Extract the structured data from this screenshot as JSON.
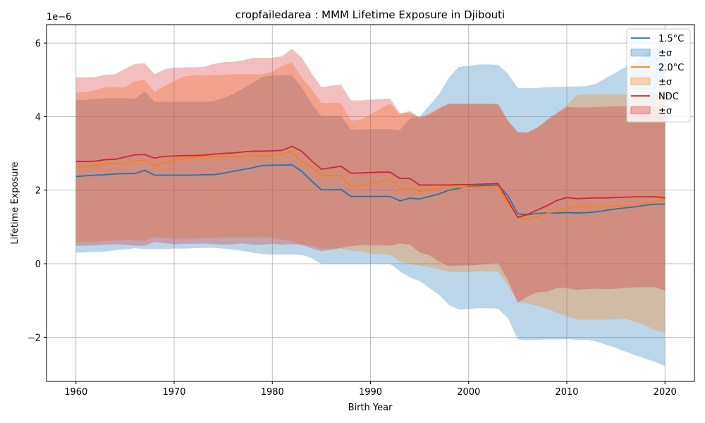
{
  "chart_data": {
    "type": "line",
    "title": "cropfailedarea : MMM Lifetime Exposure in Djibouti",
    "xlabel": "Birth Year",
    "ylabel": "Lifetime Exposure",
    "y_offset_text": "1e−6",
    "xlim": [
      1957,
      2023
    ],
    "ylim": [
      -3.2,
      6.5
    ],
    "x_ticks": [
      1960,
      1970,
      1980,
      1990,
      2000,
      2010,
      2020
    ],
    "y_ticks": [
      -2,
      0,
      2,
      4,
      6
    ],
    "y_tick_labels": [
      "−2",
      "0",
      "2",
      "4",
      "6"
    ],
    "grid": true,
    "legend_position": "upper right",
    "legend": [
      "1.5°C",
      "±σ",
      "2.0°C",
      "±σ",
      "NDC",
      "±σ"
    ],
    "x": [
      1960,
      1961,
      1962,
      1963,
      1964,
      1965,
      1966,
      1967,
      1968,
      1969,
      1970,
      1971,
      1972,
      1973,
      1974,
      1975,
      1976,
      1977,
      1978,
      1979,
      1980,
      1981,
      1982,
      1983,
      1984,
      1985,
      1986,
      1987,
      1988,
      1989,
      1990,
      1991,
      1992,
      1993,
      1994,
      1995,
      1996,
      1997,
      1998,
      1999,
      2000,
      2001,
      2002,
      2003,
      2004,
      2005,
      2006,
      2007,
      2008,
      2009,
      2010,
      2011,
      2012,
      2013,
      2014,
      2015,
      2016,
      2017,
      2018,
      2019,
      2020
    ],
    "series": [
      {
        "name": "1.5°C",
        "color": "#1f77b4",
        "values": [
          2.37,
          2.39,
          2.41,
          2.42,
          2.44,
          2.45,
          2.45,
          2.54,
          2.41,
          2.41,
          2.41,
          2.41,
          2.41,
          2.42,
          2.42,
          2.46,
          2.51,
          2.56,
          2.61,
          2.67,
          2.68,
          2.68,
          2.69,
          2.51,
          2.25,
          2.01,
          2.01,
          2.02,
          1.83,
          1.83,
          1.83,
          1.83,
          1.83,
          1.71,
          1.78,
          1.76,
          1.83,
          1.9,
          2.0,
          2.05,
          2.1,
          2.12,
          2.13,
          2.14,
          1.85,
          1.36,
          1.33,
          1.37,
          1.38,
          1.38,
          1.39,
          1.38,
          1.39,
          1.41,
          1.45,
          1.49,
          1.52,
          1.55,
          1.59,
          1.62,
          1.62
        ],
        "upper": [
          4.44,
          4.46,
          4.48,
          4.5,
          4.5,
          4.5,
          4.49,
          4.68,
          4.4,
          4.4,
          4.4,
          4.4,
          4.4,
          4.4,
          4.42,
          4.5,
          4.62,
          4.76,
          4.92,
          5.08,
          5.12,
          5.12,
          5.13,
          4.79,
          4.36,
          4.02,
          4.02,
          4.02,
          3.65,
          3.65,
          3.66,
          3.66,
          3.66,
          3.64,
          3.95,
          4.0,
          4.3,
          4.62,
          5.07,
          5.35,
          5.38,
          5.42,
          5.42,
          5.41,
          5.17,
          4.78,
          4.78,
          4.78,
          4.8,
          4.81,
          4.82,
          4.82,
          4.83,
          4.9,
          5.05,
          5.2,
          5.35,
          5.5,
          5.7,
          5.9,
          6.05
        ],
        "lower": [
          0.3,
          0.31,
          0.32,
          0.33,
          0.37,
          0.39,
          0.42,
          0.4,
          0.4,
          0.4,
          0.41,
          0.41,
          0.42,
          0.43,
          0.43,
          0.41,
          0.38,
          0.35,
          0.3,
          0.26,
          0.25,
          0.25,
          0.25,
          0.24,
          0.15,
          0.0,
          0.0,
          0.0,
          0.0,
          0.0,
          0.0,
          0.0,
          0.0,
          -0.21,
          -0.37,
          -0.47,
          -0.66,
          -0.85,
          -1.12,
          -1.25,
          -1.23,
          -1.21,
          -1.21,
          -1.22,
          -1.48,
          -2.06,
          -2.08,
          -2.07,
          -2.06,
          -2.06,
          -2.05,
          -2.07,
          -2.07,
          -2.12,
          -2.2,
          -2.29,
          -2.39,
          -2.49,
          -2.58,
          -2.67,
          -2.78
        ]
      },
      {
        "name": "2.0°C",
        "color": "#ff7f0e",
        "values": [
          2.62,
          2.64,
          2.67,
          2.72,
          2.72,
          2.72,
          2.8,
          2.81,
          2.67,
          2.74,
          2.82,
          2.87,
          2.9,
          2.91,
          2.91,
          2.92,
          2.92,
          2.92,
          2.93,
          2.93,
          2.94,
          2.99,
          3.05,
          2.75,
          2.62,
          2.39,
          2.39,
          2.39,
          2.12,
          2.12,
          2.17,
          2.24,
          2.31,
          2.05,
          2.07,
          1.97,
          2.02,
          2.05,
          2.08,
          2.08,
          2.08,
          2.08,
          2.08,
          2.08,
          1.64,
          1.26,
          1.22,
          1.28,
          1.37,
          1.44,
          1.5,
          1.55,
          1.55,
          1.55,
          1.56,
          1.57,
          1.58,
          1.61,
          1.65,
          1.7,
          1.75
        ],
        "upper": [
          4.65,
          4.67,
          4.72,
          4.8,
          4.8,
          4.8,
          4.96,
          5.0,
          4.67,
          4.82,
          4.97,
          5.09,
          5.12,
          5.12,
          5.13,
          5.13,
          5.15,
          5.15,
          5.15,
          5.15,
          5.22,
          5.38,
          5.47,
          5.06,
          4.75,
          4.37,
          4.37,
          4.37,
          3.89,
          3.92,
          4.06,
          4.22,
          4.35,
          4.06,
          4.17,
          3.97,
          4.1,
          4.24,
          4.35,
          4.35,
          4.35,
          4.35,
          4.35,
          4.34,
          3.9,
          3.57,
          3.56,
          3.7,
          3.9,
          4.09,
          4.3,
          4.58,
          4.6,
          4.6,
          4.6,
          4.6,
          4.6,
          4.62,
          4.62,
          4.62,
          4.63
        ],
        "lower": [
          0.58,
          0.59,
          0.6,
          0.62,
          0.63,
          0.64,
          0.64,
          0.62,
          0.72,
          0.7,
          0.68,
          0.68,
          0.68,
          0.69,
          0.7,
          0.71,
          0.72,
          0.71,
          0.72,
          0.72,
          0.71,
          0.65,
          0.62,
          0.51,
          0.49,
          0.41,
          0.41,
          0.41,
          0.35,
          0.33,
          0.28,
          0.25,
          0.24,
          0.06,
          0.0,
          -0.05,
          -0.1,
          -0.15,
          -0.22,
          -0.22,
          -0.22,
          -0.21,
          -0.21,
          -0.22,
          -0.59,
          -1.03,
          -1.08,
          -1.14,
          -1.23,
          -1.33,
          -1.43,
          -1.52,
          -1.52,
          -1.52,
          -1.52,
          -1.51,
          -1.5,
          -1.58,
          -1.68,
          -1.8,
          -1.87
        ]
      },
      {
        "name": "NDC",
        "color": "#d62728",
        "values": [
          2.78,
          2.78,
          2.79,
          2.83,
          2.84,
          2.9,
          2.96,
          2.97,
          2.87,
          2.92,
          2.93,
          2.94,
          2.94,
          2.95,
          2.98,
          3.0,
          3.01,
          3.04,
          3.06,
          3.06,
          3.07,
          3.08,
          3.19,
          3.06,
          2.8,
          2.57,
          2.61,
          2.65,
          2.46,
          2.47,
          2.48,
          2.49,
          2.49,
          2.32,
          2.32,
          2.14,
          2.14,
          2.14,
          2.14,
          2.15,
          2.15,
          2.16,
          2.17,
          2.18,
          1.72,
          1.26,
          1.34,
          1.46,
          1.58,
          1.72,
          1.8,
          1.77,
          1.78,
          1.79,
          1.79,
          1.8,
          1.81,
          1.82,
          1.82,
          1.82,
          1.79
        ],
        "upper": [
          5.07,
          5.07,
          5.08,
          5.14,
          5.15,
          5.3,
          5.43,
          5.45,
          5.15,
          5.28,
          5.33,
          5.34,
          5.34,
          5.35,
          5.43,
          5.48,
          5.49,
          5.53,
          5.6,
          5.6,
          5.6,
          5.64,
          5.85,
          5.6,
          5.18,
          4.8,
          4.84,
          4.87,
          4.44,
          4.44,
          4.46,
          4.48,
          4.49,
          4.09,
          4.12,
          3.97,
          4.05,
          4.22,
          4.35,
          4.35,
          4.35,
          4.35,
          4.35,
          4.34,
          3.89,
          3.58,
          3.57,
          3.7,
          3.92,
          4.1,
          4.26,
          4.25,
          4.25,
          4.26,
          4.27,
          4.28,
          4.28,
          4.28,
          4.28,
          4.28,
          4.21
        ],
        "lower": [
          0.49,
          0.49,
          0.5,
          0.52,
          0.53,
          0.52,
          0.49,
          0.49,
          0.59,
          0.56,
          0.53,
          0.54,
          0.54,
          0.55,
          0.53,
          0.52,
          0.53,
          0.55,
          0.52,
          0.52,
          0.54,
          0.52,
          0.53,
          0.52,
          0.42,
          0.34,
          0.38,
          0.43,
          0.48,
          0.5,
          0.5,
          0.5,
          0.49,
          0.55,
          0.52,
          0.31,
          0.23,
          0.06,
          -0.07,
          -0.05,
          -0.05,
          -0.03,
          -0.01,
          0.02,
          -0.45,
          -1.06,
          -0.89,
          -0.78,
          -0.76,
          -0.66,
          -0.66,
          -0.71,
          -0.69,
          -0.68,
          -0.69,
          -0.68,
          -0.66,
          -0.64,
          -0.64,
          -0.64,
          -0.73
        ]
      }
    ]
  }
}
